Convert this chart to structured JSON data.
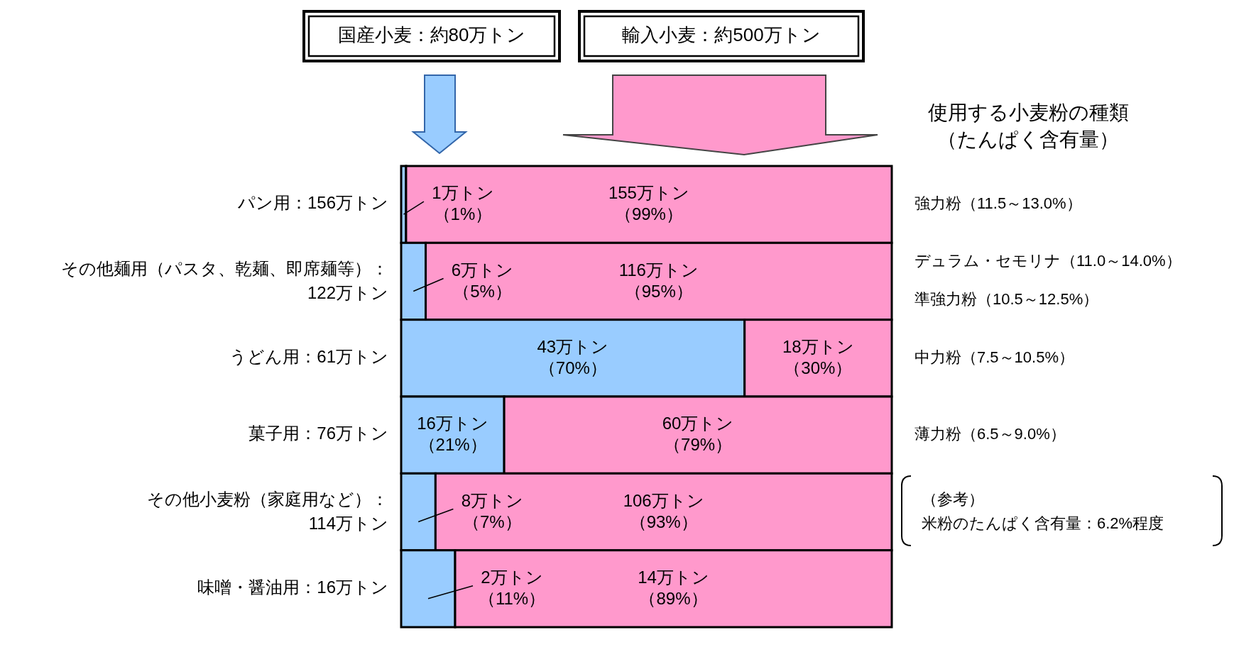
{
  "chart_data": {
    "type": "bar",
    "orientation": "horizontal",
    "stacked": true,
    "categories": [
      "パン用：156万トン",
      "その他麺用（パスタ、乾麺、即席麺等）：122万トン",
      "うどん用：61万トン",
      "菓子用：76万トン",
      "その他小麦粉（家庭用など）：114万トン",
      "味噌・醤油用：16万トン"
    ],
    "series": [
      {
        "color": "#99ccff",
        "values": [
          1,
          5,
          70,
          21,
          7,
          11
        ],
        "value_labels": [
          "1万トン（1%）",
          "6万トン（5%）",
          "43万トン（70%）",
          "16万トン（21%）",
          "8万トン（7%）",
          "2万トン（11%）"
        ]
      },
      {
        "color": "#ff99cc",
        "values": [
          99,
          95,
          30,
          79,
          93,
          89
        ],
        "value_labels": [
          "155万トン（99%）",
          "116万トン（95%）",
          "18万トン（30%）",
          "60万トン（79%）",
          "106万トン（93%）",
          "14万トン（89%）"
        ]
      }
    ],
    "annotations": [
      "国産小麦：約80万トン",
      "輸入小麦：約500万トン",
      "使用する小麦粉の種類（たんぱく含有量）",
      "強力粉（11.5～13.0%）",
      "デュラム・セモリナ（11.0～14.0%）",
      "準強力粉（10.5～12.5%）",
      "中力粉（7.5～10.5%）",
      "薄力粉（6.5～9.0%）",
      "（参考）米粉のたんぱく含有量：6.2%程度"
    ]
  }
}
